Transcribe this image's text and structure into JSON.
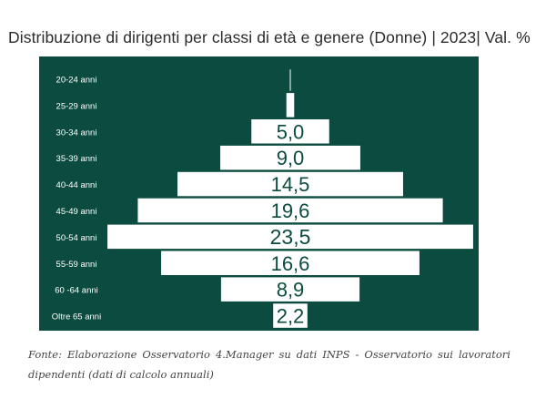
{
  "title": "Distribuzione di dirigenti per classi di età e genere (Donne) | 2023| Val. %",
  "chart_data": {
    "type": "bar",
    "orientation": "horizontal-centered",
    "categories": [
      "20-24 anni",
      "25-29 anni",
      "30-34 anni",
      "35-39 anni",
      "40-44 anni",
      "45-49 anni",
      "50-54 anni",
      "55-59 anni",
      "60 -64 anni",
      "Oltre 65 anni"
    ],
    "values": [
      0.0,
      0.5,
      5.0,
      9.0,
      14.5,
      19.6,
      23.5,
      16.6,
      8.9,
      2.2
    ],
    "data_labels": [
      "",
      "",
      "5,0",
      "9,0",
      "14,5",
      "19,6",
      "23,5",
      "16,6",
      "8,9",
      "2,2"
    ],
    "legend": "none",
    "grid": false
  },
  "colors": {
    "panel": "#0c4c40",
    "bar": "#ffffff",
    "label_text": "#0c4c40",
    "category_text": "#ffffff"
  },
  "source": "Fonte: Elaborazione Osservatorio 4.Manager su dati INPS - Osservatorio sui lavoratori dipendenti (dati di calcolo annuali)"
}
